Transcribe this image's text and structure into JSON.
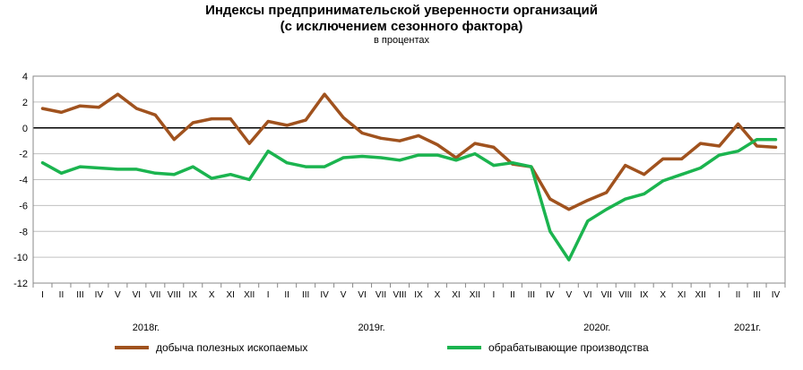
{
  "chart_data": {
    "type": "line",
    "title": "Индексы предпринимательской уверенности организаций",
    "subtitle": "(с исключением сезонного фактора)",
    "unit": "в процентах",
    "ylim": [
      -12,
      4
    ],
    "yticks": [
      "4",
      "2",
      "0",
      "-2",
      "-4",
      "-6",
      "-8",
      "-10",
      "-12"
    ],
    "grid": true,
    "legend_position": "bottom",
    "x": [
      "I",
      "II",
      "III",
      "IV",
      "V",
      "VI",
      "VII",
      "VIII",
      "IX",
      "X",
      "XI",
      "XII",
      "I",
      "II",
      "III",
      "IV",
      "V",
      "VI",
      "VII",
      "VIII",
      "IX",
      "X",
      "XI",
      "XII",
      "I",
      "II",
      "III",
      "IV",
      "V",
      "VI",
      "VII",
      "VIII",
      "IX",
      "X",
      "XI",
      "XII",
      "I",
      "II",
      "III",
      "IV"
    ],
    "years": [
      {
        "label": "2018г.",
        "start": 0,
        "end": 11
      },
      {
        "label": "2019г.",
        "start": 12,
        "end": 23
      },
      {
        "label": "2020г.",
        "start": 24,
        "end": 35
      },
      {
        "label": "2021г.",
        "start": 36,
        "end": 39
      }
    ],
    "series": [
      {
        "name": "добыча полезных ископаемых",
        "color": "#a0521e",
        "values": [
          1.5,
          1.2,
          1.7,
          1.6,
          2.6,
          1.5,
          1.0,
          -0.9,
          0.4,
          0.7,
          0.7,
          -1.2,
          0.5,
          0.2,
          0.6,
          2.6,
          0.8,
          -0.4,
          -0.8,
          -1.0,
          -0.6,
          -1.3,
          -2.3,
          -1.2,
          -1.5,
          -2.8,
          -3.0,
          -5.5,
          -6.3,
          -5.6,
          -5.0,
          -2.9,
          -3.6,
          -2.4,
          -2.4,
          -1.2,
          -1.4,
          0.3,
          -1.4,
          -1.5
        ]
      },
      {
        "name": "обрабатывающие производства",
        "color": "#1bb44f",
        "values": [
          -2.7,
          -3.5,
          -3.0,
          -3.1,
          -3.2,
          -3.2,
          -3.5,
          -3.6,
          -3.0,
          -3.9,
          -3.6,
          -4.0,
          -1.8,
          -2.7,
          -3.0,
          -3.0,
          -2.3,
          -2.2,
          -2.3,
          -2.5,
          -2.1,
          -2.1,
          -2.5,
          -2.0,
          -2.9,
          -2.7,
          -3.0,
          -8.0,
          -10.2,
          -7.2,
          -6.3,
          -5.5,
          -5.1,
          -4.1,
          -3.6,
          -3.1,
          -2.1,
          -1.8,
          -0.9,
          -0.9
        ]
      }
    ]
  }
}
